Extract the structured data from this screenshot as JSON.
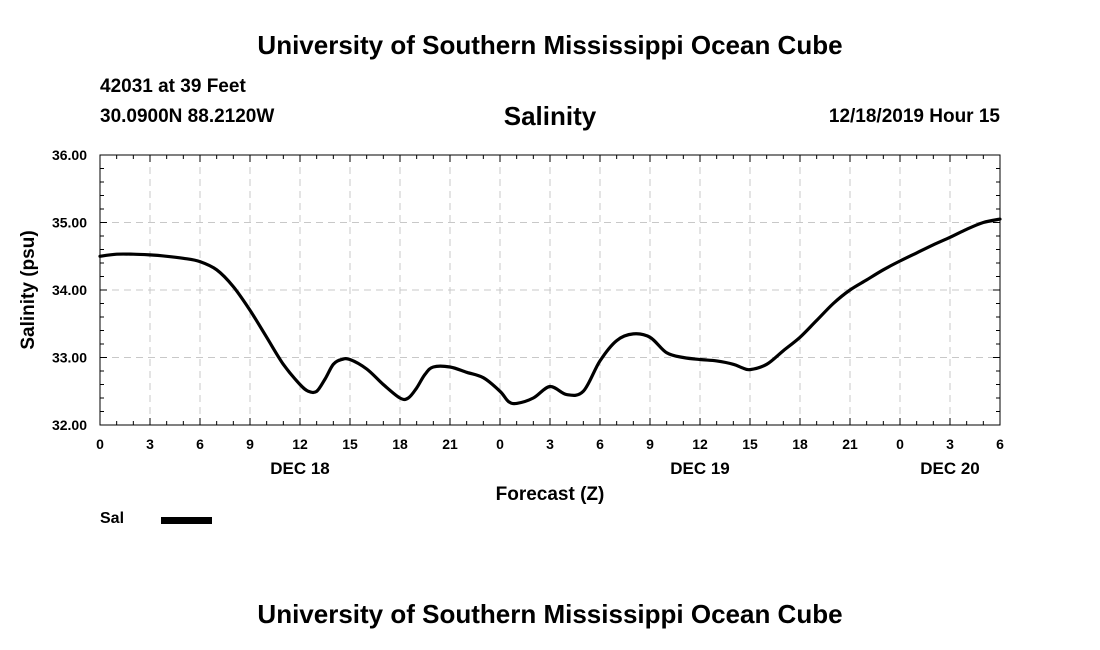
{
  "header": {
    "title": "University of Southern Mississippi Ocean Cube",
    "station": "42031 at 39 Feet",
    "coords": "30.0900N 88.2120W",
    "datetime": "12/18/2019 Hour 15"
  },
  "footer": {
    "title": "University of Southern Mississippi Ocean Cube"
  },
  "legend": {
    "label": "Sal",
    "color": "#000000"
  },
  "chart_data": {
    "type": "line",
    "title": "Salinity",
    "xlabel": "Forecast (Z)",
    "ylabel": "Salinity (psu)",
    "xlim": [
      0,
      54
    ],
    "ylim": [
      32,
      36
    ],
    "x_ticks": [
      0,
      3,
      6,
      9,
      12,
      15,
      18,
      21,
      24,
      27,
      30,
      33,
      36,
      39,
      42,
      45,
      48,
      51,
      54
    ],
    "x_tick_labels": [
      "0",
      "3",
      "6",
      "9",
      "12",
      "15",
      "18",
      "21",
      "0",
      "3",
      "6",
      "9",
      "12",
      "15",
      "18",
      "21",
      "0",
      "3",
      "6"
    ],
    "y_ticks": [
      32,
      33,
      34,
      35,
      36
    ],
    "y_tick_labels": [
      "32.00",
      "33.00",
      "34.00",
      "35.00",
      "36.00"
    ],
    "date_labels": [
      {
        "x": 12,
        "label": "DEC 18"
      },
      {
        "x": 36,
        "label": "DEC 19"
      },
      {
        "x": 51,
        "label": "DEC 20"
      }
    ],
    "grid": true,
    "series": [
      {
        "name": "Sal",
        "x": [
          0,
          1,
          2,
          3,
          4,
          5,
          6,
          7,
          8,
          9,
          10,
          11,
          12,
          12.5,
          13,
          13.5,
          14,
          14.5,
          15,
          16,
          17,
          18,
          18.5,
          19,
          19.5,
          20,
          21,
          22,
          23,
          24,
          24.5,
          25,
          26,
          27,
          28,
          29,
          30,
          31,
          32,
          33,
          34,
          35,
          36,
          37,
          38,
          38.5,
          39,
          40,
          41,
          42,
          43,
          44,
          45,
          46,
          47,
          48,
          49,
          50,
          51,
          52,
          53,
          54
        ],
        "y": [
          34.5,
          34.53,
          34.53,
          34.52,
          34.5,
          34.47,
          34.42,
          34.3,
          34.05,
          33.7,
          33.3,
          32.9,
          32.6,
          32.5,
          32.5,
          32.68,
          32.9,
          32.97,
          32.97,
          32.83,
          32.6,
          32.4,
          32.4,
          32.55,
          32.75,
          32.86,
          32.86,
          32.78,
          32.7,
          32.5,
          32.35,
          32.32,
          32.4,
          32.57,
          32.45,
          32.5,
          32.95,
          33.25,
          33.35,
          33.3,
          33.07,
          33.0,
          32.97,
          32.95,
          32.9,
          32.85,
          32.82,
          32.9,
          33.1,
          33.3,
          33.55,
          33.8,
          34.0,
          34.15,
          34.3,
          34.43,
          34.55,
          34.67,
          34.78,
          34.9,
          35.0,
          35.05
        ]
      }
    ]
  }
}
